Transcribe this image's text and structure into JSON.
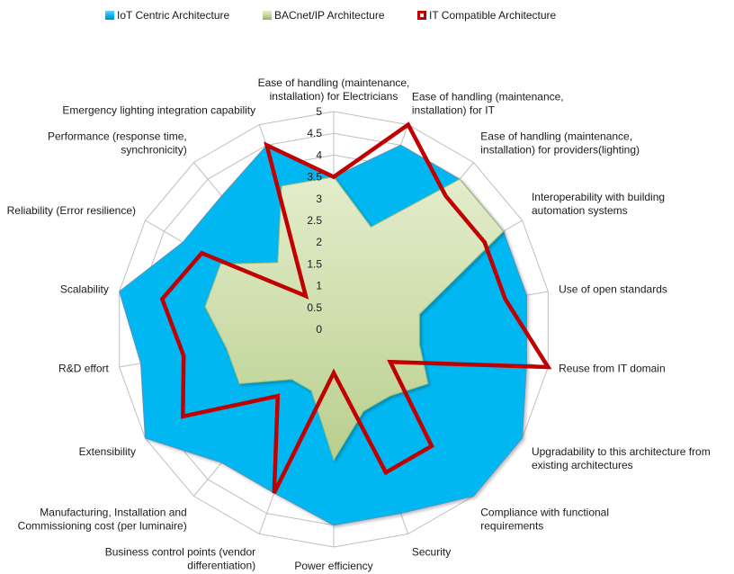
{
  "legend": {
    "iot": "IoT Centric Architecture",
    "bacnet": "BACnet/IP Architecture",
    "it": "IT Compatible Architecture"
  },
  "colors": {
    "iot_fill": "#00b7f1",
    "iot_stroke": "#5a93b8",
    "bacnet_fill": "#c6d9a0",
    "bacnet_stroke": "#9fbb78",
    "it_line": "#c00000",
    "grid": "#bfbfbf"
  },
  "chart_data": {
    "type": "radar",
    "title": "",
    "rlim": [
      0,
      5
    ],
    "r_ticks": [
      "0",
      "0.5",
      "1",
      "1.5",
      "2",
      "2.5",
      "3",
      "3.5",
      "4",
      "4.5",
      "5"
    ],
    "grid": true,
    "legend_position": "top",
    "categories": [
      "Ease of handling (maintenance, installation) for Electricians",
      "Ease of handling (maintenance, installation) for IT",
      "Ease of handling (maintenance, installation) for providers(lighting)",
      "Interoperability with building automation systems",
      "Use of open standards",
      "Reuse from IT domain",
      "Upgradability to this architecture from existing architectures",
      "Compliance with functional requirements",
      "Security",
      "Power efficiency",
      "Business control points (vendor differentiation)",
      "Manufacturing, Installation and Commissioning cost (per luminaire)",
      "Extensibility",
      "R&D effort",
      "Scalability",
      "Reliability (Error resilience)",
      "Performance (response time, synchronicity)",
      "Emergency lighting integration capability"
    ],
    "category_lines": [
      [
        "Ease of handling (maintenance,",
        "installation) for Electricians"
      ],
      [
        "Ease of handling (maintenance,",
        "installation) for IT"
      ],
      [
        "Ease of handling (maintenance,",
        "installation) for providers(lighting)"
      ],
      [
        "Interoperability with building",
        "automation  systems"
      ],
      [
        "Use of open standards"
      ],
      [
        "Reuse from IT domain"
      ],
      [
        "Upgradability to this architecture from",
        "existing architectures"
      ],
      [
        "Compliance with functional",
        "requirements"
      ],
      [
        "Security"
      ],
      [
        "Power efficiency"
      ],
      [
        "Business control points (vendor",
        "differentiation)"
      ],
      [
        "Manufacturing, Installation and",
        "Commissioning cost (per luminaire)"
      ],
      [
        "Extensibility"
      ],
      [
        "R&D effort"
      ],
      [
        "Scalability"
      ],
      [
        "Reliability (Error resilience)"
      ],
      [
        "Performance (response time,",
        "synchronicity)"
      ],
      [
        "Emergency lighting integration capability"
      ]
    ],
    "series": [
      {
        "name": "IoT Centric Architecture",
        "values": [
          3.5,
          4.5,
          4.5,
          4.5,
          4.5,
          4.5,
          5,
          5,
          4.5,
          4.5,
          4,
          4,
          5,
          4.5,
          5,
          4,
          4,
          4.5
        ]
      },
      {
        "name": "BACnet/IP Architecture",
        "values": [
          3.5,
          2.5,
          4.5,
          4.5,
          2,
          2,
          2.5,
          2,
          2,
          3,
          1.5,
          1.5,
          2.5,
          2.5,
          3,
          3,
          2,
          3.5
        ]
      },
      {
        "name": "IT Compatible Architecture",
        "values": [
          3.5,
          5,
          4,
          4,
          4,
          5,
          1.5,
          3.5,
          3.5,
          1,
          4,
          2,
          4,
          3.5,
          4,
          3.5,
          1,
          4.5
        ]
      }
    ]
  }
}
